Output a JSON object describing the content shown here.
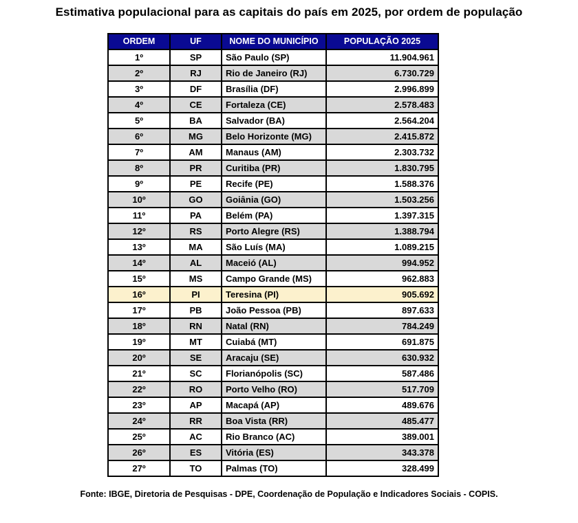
{
  "title": "Estimativa populacional para as capitais do país em 2025, por ordem de população",
  "source": "Fonte: IBGE, Diretoria de Pesquisas - DPE, Coordenação de População e Indicadores Sociais - COPIS.",
  "colors": {
    "header_bg": "#0a0a93",
    "header_text": "#ffffff",
    "row_stripe": "#d9d9d9",
    "row_highlight": "#fcf1cd",
    "border": "#000000"
  },
  "table": {
    "headers": [
      "ORDEM",
      "UF",
      "NOME DO MUNICÍPIO",
      "POPULAÇÃO 2025"
    ],
    "rows": [
      {
        "ordem": "1º",
        "uf": "SP",
        "municipio": "São Paulo (SP)",
        "populacao": "11.904.961",
        "highlight": false
      },
      {
        "ordem": "2º",
        "uf": "RJ",
        "municipio": "Rio de Janeiro (RJ)",
        "populacao": "6.730.729",
        "highlight": false
      },
      {
        "ordem": "3º",
        "uf": "DF",
        "municipio": "Brasília (DF)",
        "populacao": "2.996.899",
        "highlight": false
      },
      {
        "ordem": "4º",
        "uf": "CE",
        "municipio": "Fortaleza (CE)",
        "populacao": "2.578.483",
        "highlight": false
      },
      {
        "ordem": "5º",
        "uf": "BA",
        "municipio": "Salvador (BA)",
        "populacao": "2.564.204",
        "highlight": false
      },
      {
        "ordem": "6º",
        "uf": "MG",
        "municipio": "Belo Horizonte (MG)",
        "populacao": "2.415.872",
        "highlight": false
      },
      {
        "ordem": "7º",
        "uf": "AM",
        "municipio": "Manaus (AM)",
        "populacao": "2.303.732",
        "highlight": false
      },
      {
        "ordem": "8º",
        "uf": "PR",
        "municipio": "Curitiba (PR)",
        "populacao": "1.830.795",
        "highlight": false
      },
      {
        "ordem": "9º",
        "uf": "PE",
        "municipio": "Recife (PE)",
        "populacao": "1.588.376",
        "highlight": false
      },
      {
        "ordem": "10º",
        "uf": "GO",
        "municipio": "Goiânia (GO)",
        "populacao": "1.503.256",
        "highlight": false
      },
      {
        "ordem": "11º",
        "uf": "PA",
        "municipio": "Belém (PA)",
        "populacao": "1.397.315",
        "highlight": false
      },
      {
        "ordem": "12º",
        "uf": "RS",
        "municipio": "Porto Alegre (RS)",
        "populacao": "1.388.794",
        "highlight": false
      },
      {
        "ordem": "13º",
        "uf": "MA",
        "municipio": "São Luís (MA)",
        "populacao": "1.089.215",
        "highlight": false
      },
      {
        "ordem": "14º",
        "uf": "AL",
        "municipio": "Maceió (AL)",
        "populacao": "994.952",
        "highlight": false
      },
      {
        "ordem": "15º",
        "uf": "MS",
        "municipio": "Campo Grande (MS)",
        "populacao": "962.883",
        "highlight": false
      },
      {
        "ordem": "16º",
        "uf": "PI",
        "municipio": "Teresina (PI)",
        "populacao": "905.692",
        "highlight": true
      },
      {
        "ordem": "17º",
        "uf": "PB",
        "municipio": "João Pessoa (PB)",
        "populacao": "897.633",
        "highlight": false
      },
      {
        "ordem": "18º",
        "uf": "RN",
        "municipio": "Natal (RN)",
        "populacao": "784.249",
        "highlight": false
      },
      {
        "ordem": "19º",
        "uf": "MT",
        "municipio": "Cuiabá (MT)",
        "populacao": "691.875",
        "highlight": false
      },
      {
        "ordem": "20º",
        "uf": "SE",
        "municipio": "Aracaju (SE)",
        "populacao": "630.932",
        "highlight": false
      },
      {
        "ordem": "21º",
        "uf": "SC",
        "municipio": "Florianópolis (SC)",
        "populacao": "587.486",
        "highlight": false
      },
      {
        "ordem": "22º",
        "uf": "RO",
        "municipio": "Porto Velho (RO)",
        "populacao": "517.709",
        "highlight": false
      },
      {
        "ordem": "23º",
        "uf": "AP",
        "municipio": "Macapá (AP)",
        "populacao": "489.676",
        "highlight": false
      },
      {
        "ordem": "24º",
        "uf": "RR",
        "municipio": "Boa Vista (RR)",
        "populacao": "485.477",
        "highlight": false
      },
      {
        "ordem": "25º",
        "uf": "AC",
        "municipio": "Rio Branco (AC)",
        "populacao": "389.001",
        "highlight": false
      },
      {
        "ordem": "26º",
        "uf": "ES",
        "municipio": "Vitória (ES)",
        "populacao": "343.378",
        "highlight": false
      },
      {
        "ordem": "27º",
        "uf": "TO",
        "municipio": "Palmas (TO)",
        "populacao": "328.499",
        "highlight": false
      }
    ]
  }
}
